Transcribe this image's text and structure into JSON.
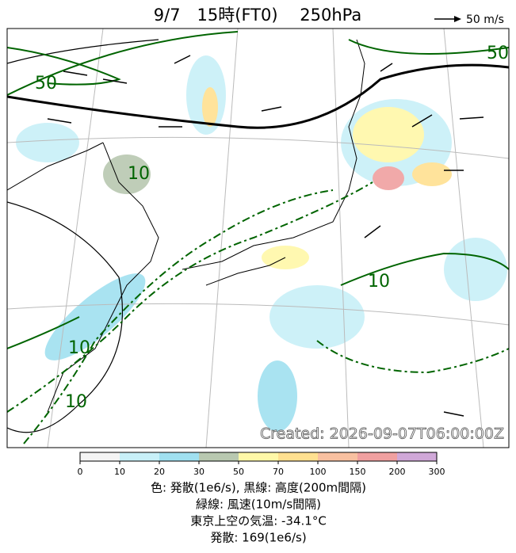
{
  "header": {
    "title": "9/7　15時(FT0)　 250hPa",
    "scale_label": "50 m/s"
  },
  "map": {
    "contour_labels": [
      "50",
      "50",
      "10",
      "10",
      "10",
      "10"
    ],
    "created": "Created: 2026-09-07T06:00:00Z"
  },
  "colorbar": {
    "ticks": [
      0,
      10,
      20,
      30,
      50,
      70,
      100,
      150,
      200,
      300
    ],
    "colors": [
      "#f4f4f4",
      "#c8f0f8",
      "#a0e0f0",
      "#b8c8b0",
      "#fff8a8",
      "#ffe090",
      "#f8c0a0",
      "#f0a0a0",
      "#d0a8d8"
    ]
  },
  "caption": [
    "色: 発散(1e6/s),  黒線: 高度(200m間隔)",
    "緑線: 風速(10m/s間隔)",
    "東京上空の気温: -34.1°C",
    "発散: 169(1e6/s)"
  ]
}
